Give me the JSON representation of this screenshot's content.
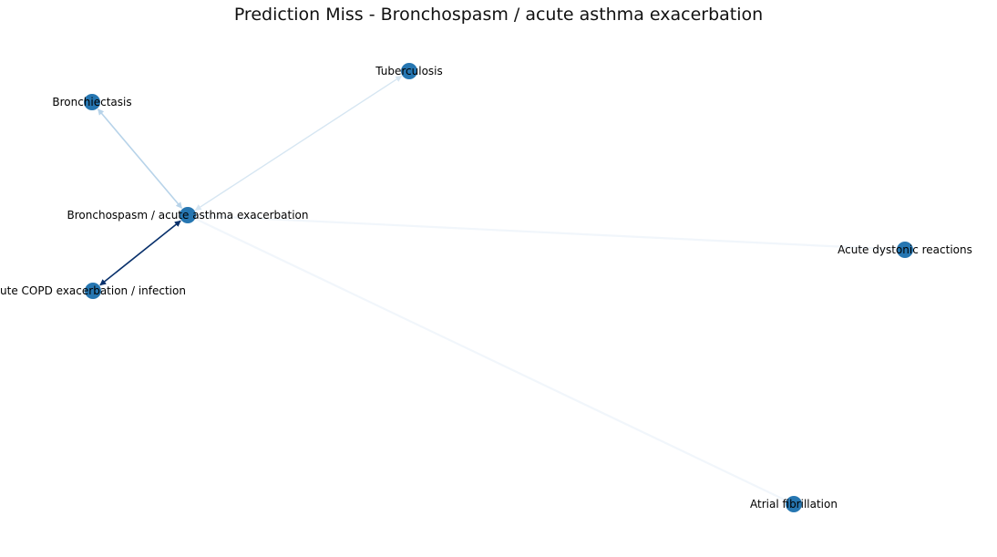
{
  "title": "Prediction Miss - Bronchospasm / acute asthma exacerbation",
  "colors": {
    "node": "#2676b1",
    "edge_strong": "#08306b",
    "edge_medium": "#b7d3e9",
    "edge_light": "#d6e6f2",
    "edge_faint": "#f1f6fb"
  },
  "nodes": [
    {
      "id": "bronchiectasis",
      "label": "Bronchiectasis"
    },
    {
      "id": "tuberculosis",
      "label": "Tuberculosis"
    },
    {
      "id": "bronchospasm",
      "label": "Bronchospasm / acute asthma exacerbation"
    },
    {
      "id": "copd",
      "label": "ute COPD exacerbation / infection"
    },
    {
      "id": "dystonic",
      "label": "Acute dystonic reactions"
    },
    {
      "id": "afib",
      "label": "Atrial fibrillation"
    }
  ],
  "edges": [
    {
      "source": "bronchospasm",
      "target": "bronchiectasis",
      "strength": "medium",
      "bidirectional": true
    },
    {
      "source": "bronchospasm",
      "target": "tuberculosis",
      "strength": "light",
      "bidirectional": true
    },
    {
      "source": "bronchospasm",
      "target": "copd",
      "strength": "strong",
      "bidirectional": true
    },
    {
      "source": "bronchospasm",
      "target": "dystonic",
      "strength": "faint",
      "bidirectional": false
    },
    {
      "source": "bronchospasm",
      "target": "afib",
      "strength": "faint",
      "bidirectional": false
    }
  ]
}
